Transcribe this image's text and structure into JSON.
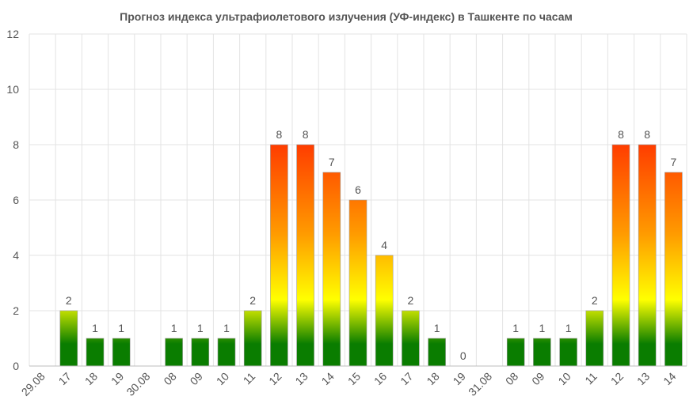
{
  "chart_data": {
    "type": "bar",
    "title": "Прогноз индекса ультрафиолетового излучения (УФ-индекс) в Ташкенте по часам",
    "xlabel": "",
    "ylabel": "",
    "ylim": [
      0,
      12
    ],
    "yticks": [
      0,
      2,
      4,
      6,
      8,
      10,
      12
    ],
    "grid": true,
    "legend": "none",
    "categories": [
      "29.08",
      "17",
      "18",
      "19",
      "30.08",
      "08",
      "09",
      "10",
      "11",
      "12",
      "13",
      "14",
      "15",
      "16",
      "17",
      "18",
      "19",
      "31.08",
      "08",
      "09",
      "10",
      "11",
      "12",
      "13",
      "14"
    ],
    "values": [
      null,
      2,
      1,
      1,
      null,
      1,
      1,
      1,
      2,
      8,
      8,
      7,
      6,
      4,
      2,
      1,
      0,
      null,
      1,
      1,
      1,
      2,
      8,
      8,
      7
    ],
    "value_labels": [
      "",
      "2",
      "1",
      "1",
      "",
      "1",
      "1",
      "1",
      "2",
      "8",
      "8",
      "7",
      "6",
      "4",
      "2",
      "1",
      "0",
      "",
      "1",
      "1",
      "1",
      "2",
      "8",
      "8",
      "7"
    ],
    "colors": {
      "low": "#0a7d00",
      "moderate": "#ffff00",
      "high": "#ff9a00",
      "very_high": "#ff3d00",
      "border": "#9e9e9e"
    }
  }
}
